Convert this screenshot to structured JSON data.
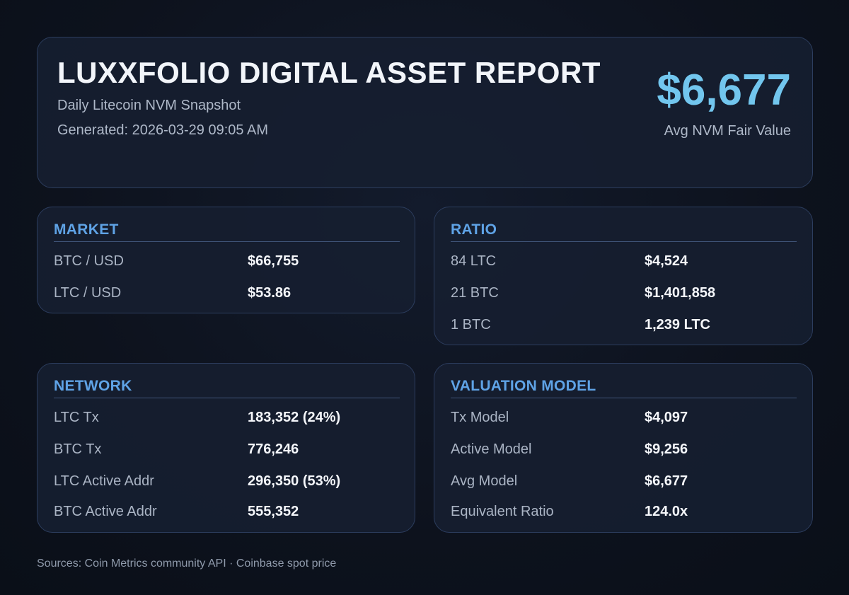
{
  "header": {
    "title": "LUXXFOLIO DIGITAL ASSET REPORT",
    "subtitle": "Daily Litecoin NVM Snapshot",
    "generated": "Generated: 2026-03-29 09:05 AM",
    "headline_value": "$6,677",
    "headline_caption": "Avg NVM Fair Value"
  },
  "market": {
    "title": "MARKET",
    "rows": [
      {
        "label": "BTC / USD",
        "value": "$66,755"
      },
      {
        "label": "LTC / USD",
        "value": "$53.86"
      }
    ]
  },
  "ratio": {
    "title": "RATIO",
    "rows": [
      {
        "label": "84 LTC",
        "value": "$4,524"
      },
      {
        "label": "21 BTC",
        "value": "$1,401,858"
      },
      {
        "label": "1 BTC",
        "value": "1,239 LTC"
      }
    ]
  },
  "network": {
    "title": "NETWORK",
    "rows": [
      {
        "label": "LTC Tx",
        "value": "183,352 (24%)"
      },
      {
        "label": "BTC Tx",
        "value": "776,246"
      },
      {
        "label": "LTC Active Addr",
        "value": "296,350 (53%)"
      },
      {
        "label": "BTC Active Addr",
        "value": "555,352"
      }
    ]
  },
  "valuation": {
    "title": "VALUATION MODEL",
    "rows": [
      {
        "label": "Tx Model",
        "value": "$4,097"
      },
      {
        "label": "Active Model",
        "value": "$9,256"
      },
      {
        "label": "Avg Model",
        "value": "$6,677"
      },
      {
        "label": "Equivalent Ratio",
        "value": "124.0x"
      }
    ]
  },
  "footer": {
    "sources": "Sources: Coin Metrics community API · Coinbase spot price"
  },
  "colors": {
    "background": "#0d121d",
    "card": "#161e30",
    "border": "#2c3d5e",
    "accent": "#72c6ee",
    "section_title": "#5fa3e6"
  }
}
